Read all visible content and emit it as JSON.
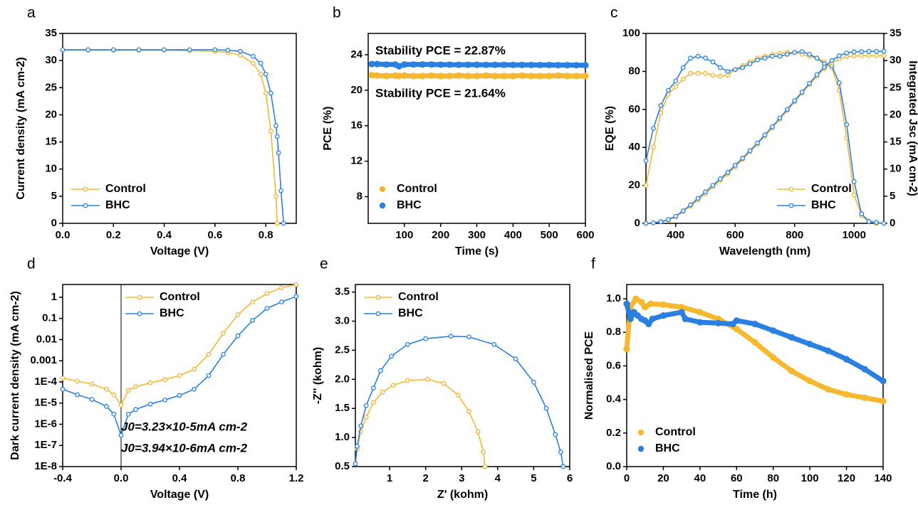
{
  "chart_data": [
    {
      "type": "line",
      "label": "a",
      "xlabel": "Voltage (V)",
      "ylabel": "Current density (mA cm-2)",
      "x": [
        0,
        0.1,
        0.2,
        0.3,
        0.4,
        0.5,
        0.6,
        0.65,
        0.7,
        0.75,
        0.78,
        0.8,
        0.82,
        0.84,
        0.845,
        0.85,
        0.86,
        0.87
      ],
      "series": [
        {
          "name": "Control",
          "color": "#f5b82e",
          "values": [
            31.9,
            31.9,
            31.9,
            31.9,
            31.9,
            31.8,
            31.7,
            31.5,
            31,
            29.5,
            27.5,
            24,
            17,
            5,
            0,
            null,
            null,
            null
          ]
        },
        {
          "name": "BHC",
          "color": "#2a7fe0",
          "values": [
            32,
            32,
            32,
            32,
            32,
            32,
            32,
            31.9,
            31.7,
            30.8,
            29.5,
            27.5,
            24,
            18,
            16,
            13,
            6,
            0
          ]
        }
      ],
      "xlim": [
        0,
        0.92
      ],
      "xticks": [
        {
          "value": 0,
          "label": "0.0"
        },
        0.2,
        0.4,
        0.6,
        0.8
      ],
      "ylim": [
        0,
        35
      ],
      "yticks": [
        0,
        5,
        10,
        15,
        20,
        25,
        30,
        35
      ],
      "legend": "lower left"
    },
    {
      "type": "scatter",
      "label": "b",
      "xlabel": "Time (s)",
      "ylabel": "PCE (%)",
      "x": [
        10,
        25,
        50,
        75,
        85,
        100,
        125,
        150,
        175,
        200,
        225,
        250,
        275,
        300,
        325,
        350,
        375,
        400,
        425,
        450,
        475,
        500,
        525,
        550,
        575,
        600
      ],
      "series": [
        {
          "name": "Control",
          "color": "#f5b82e",
          "values": [
            21.7,
            21.65,
            21.6,
            21.65,
            21.6,
            21.65,
            21.6,
            21.6,
            21.65,
            21.6,
            21.6,
            21.65,
            21.6,
            21.6,
            21.65,
            21.6,
            21.6,
            21.6,
            21.65,
            21.6,
            21.6,
            21.6,
            21.65,
            21.6,
            21.6,
            21.6
          ]
        },
        {
          "name": "BHC",
          "color": "#2a7fe0",
          "values": [
            22.95,
            22.95,
            22.9,
            22.9,
            22.7,
            22.9,
            22.9,
            22.9,
            22.9,
            22.88,
            22.88,
            22.87,
            22.87,
            22.87,
            22.86,
            22.86,
            22.86,
            22.85,
            22.85,
            22.85,
            22.84,
            22.84,
            22.83,
            22.83,
            22.82,
            22.82
          ]
        }
      ],
      "xlim": [
        0,
        600
      ],
      "xticks": [
        100,
        200,
        300,
        400,
        500,
        600
      ],
      "ylim": [
        5,
        26.4
      ],
      "yticks": [
        8,
        12,
        16,
        20,
        24
      ],
      "legend": "lower left",
      "annotations": [
        {
          "text": "Stability PCE = 22.87%",
          "color": "#2a7fe0"
        },
        {
          "text": "Stability PCE = 21.64%",
          "color": "#f5b82e"
        }
      ]
    },
    {
      "type": "line",
      "label": "c",
      "xlabel": "Wavelength (nm)",
      "ylabel": "EQE (%)",
      "y2label": "Integrated Jsc (mA cm-2)",
      "x": [
        300,
        325,
        350,
        375,
        400,
        425,
        450,
        475,
        500,
        525,
        550,
        575,
        600,
        625,
        650,
        675,
        700,
        725,
        750,
        775,
        800,
        825,
        850,
        875,
        900,
        925,
        950,
        975,
        1000,
        1025,
        1050,
        1075,
        1100
      ],
      "series": [
        {
          "name": "Control",
          "color": "#f5b82e",
          "values": [
            20,
            40,
            58,
            68,
            72,
            76,
            79,
            79,
            79,
            78,
            77.5,
            78,
            81,
            83,
            85,
            87,
            88,
            89,
            89.5,
            90,
            90,
            89,
            88,
            87,
            85,
            82,
            70,
            45,
            15,
            4,
            1,
            0,
            0
          ]
        },
        {
          "name": "BHC",
          "color": "#2a7fe0",
          "values": [
            33,
            50,
            62,
            70,
            75,
            82,
            87,
            88,
            87,
            85,
            82,
            80,
            81,
            82,
            84,
            86,
            87,
            88,
            88,
            89,
            90,
            90.5,
            89,
            87,
            84,
            83,
            74,
            52,
            22,
            5,
            1,
            0.5,
            0
          ]
        },
        {
          "color": "#f5b82e",
          "axis": "y2",
          "values": [
            0,
            0.1,
            0.3,
            0.6,
            1.2,
            2.2,
            3.2,
            4.3,
            5.5,
            6.7,
            7.9,
            9.1,
            10.4,
            11.8,
            13.2,
            14.6,
            16.1,
            17.6,
            19.2,
            20.8,
            22.4,
            24,
            25.6,
            27.1,
            28.5,
            29.6,
            30.3,
            30.7,
            30.85,
            30.9,
            30.9,
            30.9,
            30.9
          ]
        },
        {
          "color": "#2a7fe0",
          "axis": "y2",
          "values": [
            0,
            0.1,
            0.3,
            0.7,
            1.3,
            2.3,
            3.4,
            4.6,
            5.8,
            7,
            8.2,
            9.4,
            10.7,
            12,
            13.4,
            14.8,
            16.3,
            17.8,
            19.4,
            21,
            22.6,
            24.2,
            25.8,
            27.4,
            28.8,
            30,
            30.9,
            31.4,
            31.6,
            31.65,
            31.7,
            31.7,
            31.7
          ]
        }
      ],
      "xlim": [
        300,
        1100
      ],
      "xticks": [
        400,
        600,
        800,
        1000
      ],
      "ylim": [
        0,
        100
      ],
      "yticks": [
        0,
        20,
        40,
        60,
        80,
        100
      ],
      "y2lim": [
        0,
        35
      ],
      "y2ticks": [
        0,
        5,
        10,
        15,
        20,
        25,
        30,
        35
      ],
      "legend": "lower right"
    },
    {
      "type": "line",
      "label": "d",
      "xlabel": "Voltage (V)",
      "ylabel": "Dark current density (mA cm-2)",
      "yscale": "log",
      "x": [
        -0.4,
        -0.3,
        -0.2,
        -0.1,
        -0.05,
        0,
        0.05,
        0.1,
        0.2,
        0.3,
        0.4,
        0.5,
        0.6,
        0.7,
        0.8,
        0.9,
        1.0,
        1.1,
        1.2
      ],
      "series": [
        {
          "name": "Control",
          "color": "#f5b82e",
          "values": [
            0.00015,
            0.00011,
            8e-05,
            4.5e-05,
            2.5e-05,
            8e-06,
            4e-05,
            6e-05,
            9e-05,
            0.00013,
            0.0002,
            0.0004,
            0.002,
            0.02,
            0.15,
            0.6,
            1.5,
            2.8,
            4
          ]
        },
        {
          "name": "BHC",
          "color": "#2a7fe0",
          "values": [
            4.5e-05,
            2.5e-05,
            1.5e-05,
            7e-06,
            3e-06,
            3e-07,
            3e-06,
            5e-06,
            9e-06,
            1.4e-05,
            2.3e-05,
            4.5e-05,
            0.0002,
            0.002,
            0.015,
            0.08,
            0.3,
            0.6,
            1.1
          ]
        }
      ],
      "xlim": [
        -0.4,
        1.2
      ],
      "xticks": [
        -0.4,
        {
          "value": 0,
          "label": "0.0"
        },
        0.4,
        0.8,
        1.2
      ],
      "ylim": [
        1e-08,
        4
      ],
      "yticks": [
        {
          "value": 1e-08,
          "label": "1E-8"
        },
        {
          "value": 1e-07,
          "label": "1E-7"
        },
        {
          "value": 1e-06,
          "label": "1E-6"
        },
        {
          "value": 1e-05,
          "label": "1E-5"
        },
        {
          "value": 0.0001,
          "label": "1E-4"
        },
        0.001,
        0.01,
        0.1,
        1
      ],
      "legend": "upper center",
      "annotations": [
        {
          "text": "J0=3.23×10-5mA cm-2",
          "color": "#f5b82e"
        },
        {
          "text": "J0=3.94×10-6mA cm-2",
          "color": "#2a7fe0"
        }
      ]
    },
    {
      "type": "line",
      "label": "e",
      "xlabel": "Z' (kohm)",
      "ylabel": "-Z'' (kohm)",
      "series": [
        {
          "name": "Control",
          "color": "#f5b82e",
          "x": [
            0.05,
            0.1,
            0.2,
            0.35,
            0.55,
            0.8,
            1.1,
            1.5,
            2.05,
            2.5,
            2.9,
            3.2,
            3.45,
            3.6,
            3.65
          ],
          "values": [
            0.55,
            0.8,
            1.1,
            1.35,
            1.6,
            1.78,
            1.9,
            1.98,
            2.0,
            1.93,
            1.73,
            1.45,
            1.1,
            0.75,
            0.5
          ]
        },
        {
          "name": "BHC",
          "color": "#2a7fe0",
          "x": [
            0.05,
            0.1,
            0.2,
            0.35,
            0.55,
            0.75,
            1.05,
            1.5,
            2.0,
            2.7,
            3.2,
            3.9,
            4.5,
            5.0,
            5.35,
            5.6,
            5.75,
            5.82
          ],
          "values": [
            0.55,
            0.85,
            1.2,
            1.55,
            1.85,
            2.15,
            2.4,
            2.6,
            2.7,
            2.74,
            2.73,
            2.6,
            2.35,
            1.95,
            1.5,
            1.05,
            0.75,
            0.5
          ]
        }
      ],
      "xlim": [
        0.05,
        6
      ],
      "xticks": [
        1,
        2,
        3,
        4,
        5,
        6
      ],
      "ylim": [
        0.5,
        3.63
      ],
      "yticks": [
        0.5,
        {
          "value": 1,
          "label": "1.0"
        },
        1.5,
        {
          "value": 2,
          "label": "2.0"
        },
        2.5,
        {
          "value": 3,
          "label": "3.0"
        },
        3.5
      ],
      "legend": "upper left"
    },
    {
      "type": "scatter",
      "label": "f",
      "xlabel": "Time (h)",
      "ylabel": "Normalised PCE",
      "series": [
        {
          "name": "Control",
          "color": "#f5b82e",
          "x": [
            0,
            2,
            5,
            8,
            10,
            13,
            20,
            30,
            40,
            50,
            60,
            70,
            80,
            90,
            100,
            110,
            120,
            130,
            140
          ],
          "values": [
            0.7,
            0.95,
            1.0,
            0.98,
            0.95,
            0.97,
            0.965,
            0.95,
            0.92,
            0.88,
            0.82,
            0.74,
            0.65,
            0.57,
            0.51,
            0.46,
            0.43,
            0.41,
            0.39
          ]
        },
        {
          "name": "BHC",
          "color": "#2a7fe0",
          "x": [
            0,
            2,
            4,
            6,
            8,
            10,
            12,
            14,
            20,
            30,
            32,
            40,
            50,
            58,
            60,
            70,
            80,
            90,
            100,
            110,
            120,
            130,
            140
          ],
          "values": [
            0.97,
            0.88,
            0.92,
            0.9,
            0.88,
            0.87,
            0.85,
            0.88,
            0.9,
            0.92,
            0.88,
            0.86,
            0.855,
            0.85,
            0.87,
            0.85,
            0.81,
            0.77,
            0.73,
            0.69,
            0.64,
            0.58,
            0.51
          ]
        }
      ],
      "xlim": [
        0,
        140
      ],
      "xticks": [
        0,
        20,
        40,
        60,
        80,
        100,
        120,
        140
      ],
      "ylim": [
        0,
        1.085
      ],
      "yticks": [
        {
          "value": 0,
          "label": "0.0"
        },
        0.2,
        0.4,
        0.6,
        0.8,
        {
          "value": 1,
          "label": "1.0"
        }
      ],
      "legend": "lower left"
    }
  ]
}
